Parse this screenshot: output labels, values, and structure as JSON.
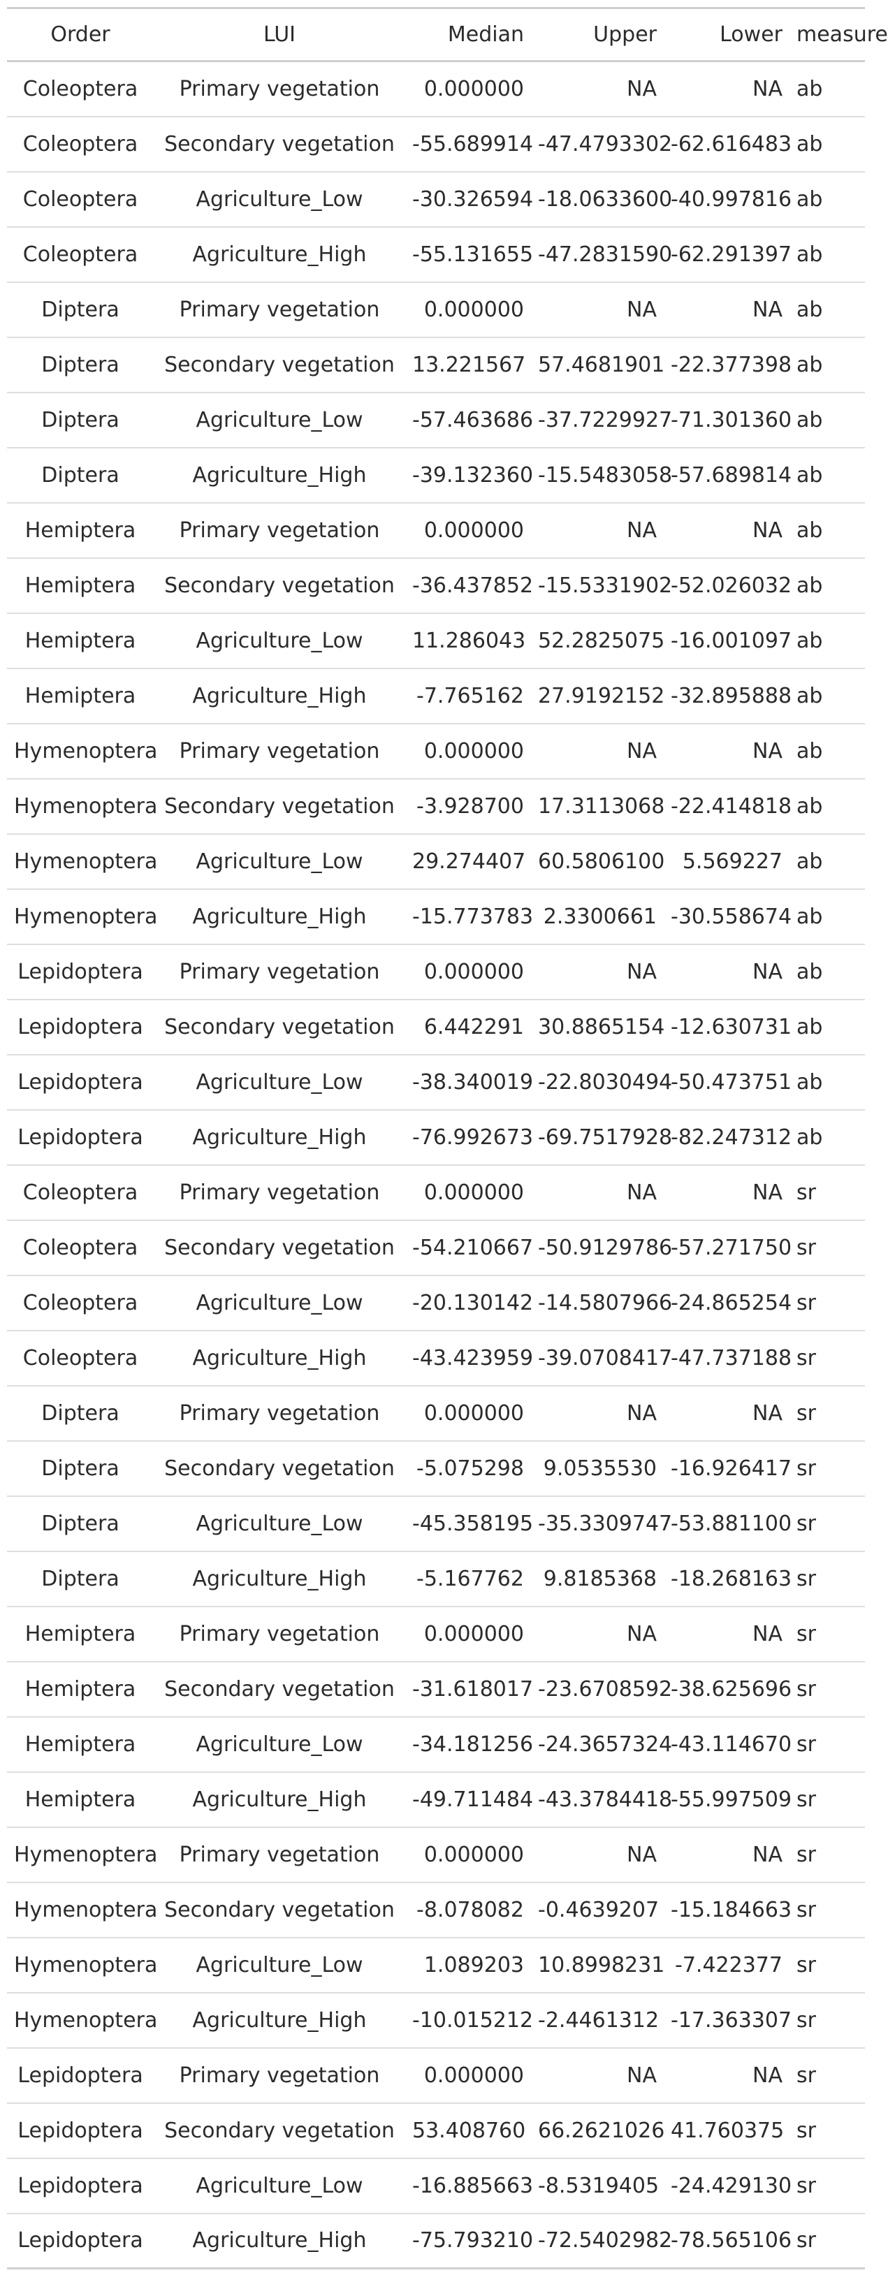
{
  "table": {
    "headers": {
      "order": "Order",
      "lui": "LUI",
      "median": "Median",
      "upper": "Upper",
      "lower": "Lower",
      "measure": "measure"
    },
    "rows": [
      {
        "order": "Coleoptera",
        "lui": "Primary vegetation",
        "median": "0.000000",
        "upper": "NA",
        "lower": "NA",
        "measure": "ab"
      },
      {
        "order": "Coleoptera",
        "lui": "Secondary vegetation",
        "median": "-55.689914",
        "upper": "-47.4793302",
        "lower": "-62.616483",
        "measure": "ab"
      },
      {
        "order": "Coleoptera",
        "lui": "Agriculture_Low",
        "median": "-30.326594",
        "upper": "-18.0633600",
        "lower": "-40.997816",
        "measure": "ab"
      },
      {
        "order": "Coleoptera",
        "lui": "Agriculture_High",
        "median": "-55.131655",
        "upper": "-47.2831590",
        "lower": "-62.291397",
        "measure": "ab"
      },
      {
        "order": "Diptera",
        "lui": "Primary vegetation",
        "median": "0.000000",
        "upper": "NA",
        "lower": "NA",
        "measure": "ab"
      },
      {
        "order": "Diptera",
        "lui": "Secondary vegetation",
        "median": "13.221567",
        "upper": "57.4681901",
        "lower": "-22.377398",
        "measure": "ab"
      },
      {
        "order": "Diptera",
        "lui": "Agriculture_Low",
        "median": "-57.463686",
        "upper": "-37.7229927",
        "lower": "-71.301360",
        "measure": "ab"
      },
      {
        "order": "Diptera",
        "lui": "Agriculture_High",
        "median": "-39.132360",
        "upper": "-15.5483058",
        "lower": "-57.689814",
        "measure": "ab"
      },
      {
        "order": "Hemiptera",
        "lui": "Primary vegetation",
        "median": "0.000000",
        "upper": "NA",
        "lower": "NA",
        "measure": "ab"
      },
      {
        "order": "Hemiptera",
        "lui": "Secondary vegetation",
        "median": "-36.437852",
        "upper": "-15.5331902",
        "lower": "-52.026032",
        "measure": "ab"
      },
      {
        "order": "Hemiptera",
        "lui": "Agriculture_Low",
        "median": "11.286043",
        "upper": "52.2825075",
        "lower": "-16.001097",
        "measure": "ab"
      },
      {
        "order": "Hemiptera",
        "lui": "Agriculture_High",
        "median": "-7.765162",
        "upper": "27.9192152",
        "lower": "-32.895888",
        "measure": "ab"
      },
      {
        "order": "Hymenoptera",
        "lui": "Primary vegetation",
        "median": "0.000000",
        "upper": "NA",
        "lower": "NA",
        "measure": "ab"
      },
      {
        "order": "Hymenoptera",
        "lui": "Secondary vegetation",
        "median": "-3.928700",
        "upper": "17.3113068",
        "lower": "-22.414818",
        "measure": "ab"
      },
      {
        "order": "Hymenoptera",
        "lui": "Agriculture_Low",
        "median": "29.274407",
        "upper": "60.5806100",
        "lower": "5.569227",
        "measure": "ab"
      },
      {
        "order": "Hymenoptera",
        "lui": "Agriculture_High",
        "median": "-15.773783",
        "upper": "2.3300661",
        "lower": "-30.558674",
        "measure": "ab"
      },
      {
        "order": "Lepidoptera",
        "lui": "Primary vegetation",
        "median": "0.000000",
        "upper": "NA",
        "lower": "NA",
        "measure": "ab"
      },
      {
        "order": "Lepidoptera",
        "lui": "Secondary vegetation",
        "median": "6.442291",
        "upper": "30.8865154",
        "lower": "-12.630731",
        "measure": "ab"
      },
      {
        "order": "Lepidoptera",
        "lui": "Agriculture_Low",
        "median": "-38.340019",
        "upper": "-22.8030494",
        "lower": "-50.473751",
        "measure": "ab"
      },
      {
        "order": "Lepidoptera",
        "lui": "Agriculture_High",
        "median": "-76.992673",
        "upper": "-69.7517928",
        "lower": "-82.247312",
        "measure": "ab"
      },
      {
        "order": "Coleoptera",
        "lui": "Primary vegetation",
        "median": "0.000000",
        "upper": "NA",
        "lower": "NA",
        "measure": "sr"
      },
      {
        "order": "Coleoptera",
        "lui": "Secondary vegetation",
        "median": "-54.210667",
        "upper": "-50.9129786",
        "lower": "-57.271750",
        "measure": "sr"
      },
      {
        "order": "Coleoptera",
        "lui": "Agriculture_Low",
        "median": "-20.130142",
        "upper": "-14.5807966",
        "lower": "-24.865254",
        "measure": "sr"
      },
      {
        "order": "Coleoptera",
        "lui": "Agriculture_High",
        "median": "-43.423959",
        "upper": "-39.0708417",
        "lower": "-47.737188",
        "measure": "sr"
      },
      {
        "order": "Diptera",
        "lui": "Primary vegetation",
        "median": "0.000000",
        "upper": "NA",
        "lower": "NA",
        "measure": "sr"
      },
      {
        "order": "Diptera",
        "lui": "Secondary vegetation",
        "median": "-5.075298",
        "upper": "9.0535530",
        "lower": "-16.926417",
        "measure": "sr"
      },
      {
        "order": "Diptera",
        "lui": "Agriculture_Low",
        "median": "-45.358195",
        "upper": "-35.3309747",
        "lower": "-53.881100",
        "measure": "sr"
      },
      {
        "order": "Diptera",
        "lui": "Agriculture_High",
        "median": "-5.167762",
        "upper": "9.8185368",
        "lower": "-18.268163",
        "measure": "sr"
      },
      {
        "order": "Hemiptera",
        "lui": "Primary vegetation",
        "median": "0.000000",
        "upper": "NA",
        "lower": "NA",
        "measure": "sr"
      },
      {
        "order": "Hemiptera",
        "lui": "Secondary vegetation",
        "median": "-31.618017",
        "upper": "-23.6708592",
        "lower": "-38.625696",
        "measure": "sr"
      },
      {
        "order": "Hemiptera",
        "lui": "Agriculture_Low",
        "median": "-34.181256",
        "upper": "-24.3657324",
        "lower": "-43.114670",
        "measure": "sr"
      },
      {
        "order": "Hemiptera",
        "lui": "Agriculture_High",
        "median": "-49.711484",
        "upper": "-43.3784418",
        "lower": "-55.997509",
        "measure": "sr"
      },
      {
        "order": "Hymenoptera",
        "lui": "Primary vegetation",
        "median": "0.000000",
        "upper": "NA",
        "lower": "NA",
        "measure": "sr"
      },
      {
        "order": "Hymenoptera",
        "lui": "Secondary vegetation",
        "median": "-8.078082",
        "upper": "-0.4639207",
        "lower": "-15.184663",
        "measure": "sr"
      },
      {
        "order": "Hymenoptera",
        "lui": "Agriculture_Low",
        "median": "1.089203",
        "upper": "10.8998231",
        "lower": "-7.422377",
        "measure": "sr"
      },
      {
        "order": "Hymenoptera",
        "lui": "Agriculture_High",
        "median": "-10.015212",
        "upper": "-2.4461312",
        "lower": "-17.363307",
        "measure": "sr"
      },
      {
        "order": "Lepidoptera",
        "lui": "Primary vegetation",
        "median": "0.000000",
        "upper": "NA",
        "lower": "NA",
        "measure": "sr"
      },
      {
        "order": "Lepidoptera",
        "lui": "Secondary vegetation",
        "median": "53.408760",
        "upper": "66.2621026",
        "lower": "41.760375",
        "measure": "sr"
      },
      {
        "order": "Lepidoptera",
        "lui": "Agriculture_Low",
        "median": "-16.885663",
        "upper": "-8.5319405",
        "lower": "-24.429130",
        "measure": "sr"
      },
      {
        "order": "Lepidoptera",
        "lui": "Agriculture_High",
        "median": "-75.793210",
        "upper": "-72.5402982",
        "lower": "-78.565106",
        "measure": "sr"
      }
    ]
  }
}
